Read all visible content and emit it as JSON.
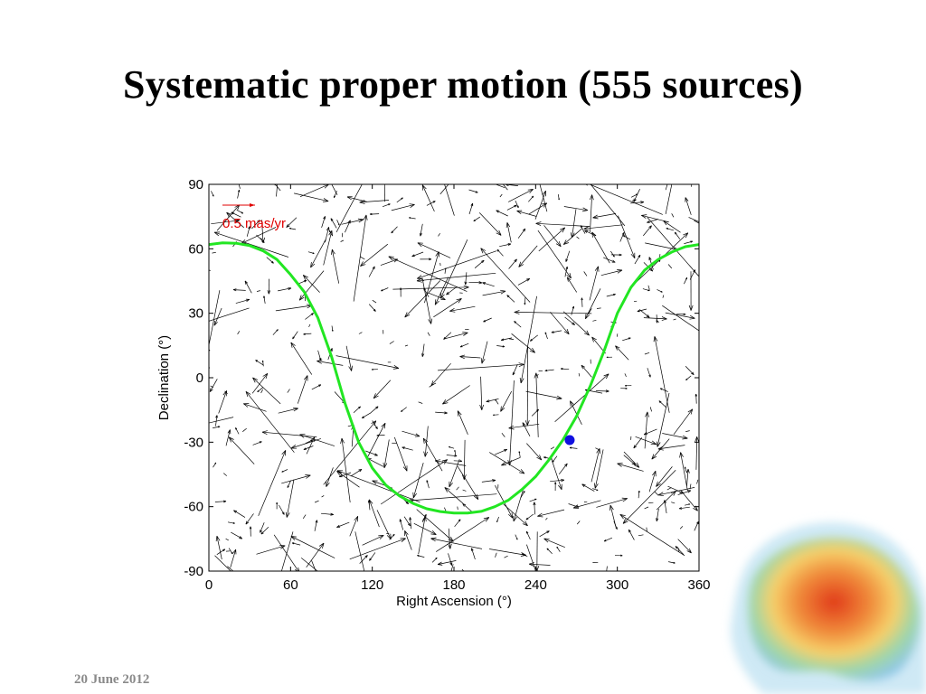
{
  "slide": {
    "title": "Systematic proper motion (555 sources)",
    "date": "20 June 2012"
  },
  "colors": {
    "curve": "#22e622",
    "scale_arrow": "#e00000",
    "marker": "#1010e0",
    "vectors": "#000000"
  },
  "decoration": {
    "icon": "australia-map-icon"
  },
  "chart_data": {
    "type": "scatter",
    "subtype": "vector-field",
    "xlabel": "Right Ascension (°)",
    "ylabel": "Declination (°)",
    "xlim": [
      0,
      360
    ],
    "ylim": [
      -90,
      90
    ],
    "xticks": [
      0,
      60,
      120,
      180,
      240,
      300,
      360
    ],
    "yticks": [
      -90,
      -60,
      -30,
      0,
      30,
      60,
      90
    ],
    "grid": false,
    "vector_count": 555,
    "scale": {
      "label": "0.5 mas/yr",
      "value_mas_per_yr": 0.5
    },
    "curve": {
      "x": [
        0,
        10,
        20,
        30,
        40,
        50,
        60,
        70,
        80,
        90,
        100,
        110,
        120,
        130,
        140,
        150,
        160,
        170,
        180,
        190,
        200,
        210,
        220,
        230,
        240,
        250,
        260,
        270,
        280,
        290,
        300,
        310,
        320,
        330,
        340,
        350,
        360
      ],
      "y": [
        62,
        62.8,
        62.6,
        61.5,
        59,
        55,
        48,
        40,
        28,
        10,
        -12,
        -30,
        -42,
        -50,
        -55,
        -58.5,
        -61,
        -62.3,
        -63,
        -63,
        -62.2,
        -60,
        -57,
        -52,
        -46,
        -38,
        -29,
        -18,
        -4,
        12,
        30,
        42,
        50,
        55,
        58.5,
        61,
        62
      ]
    },
    "marker": {
      "x": 265,
      "y": -29
    }
  }
}
